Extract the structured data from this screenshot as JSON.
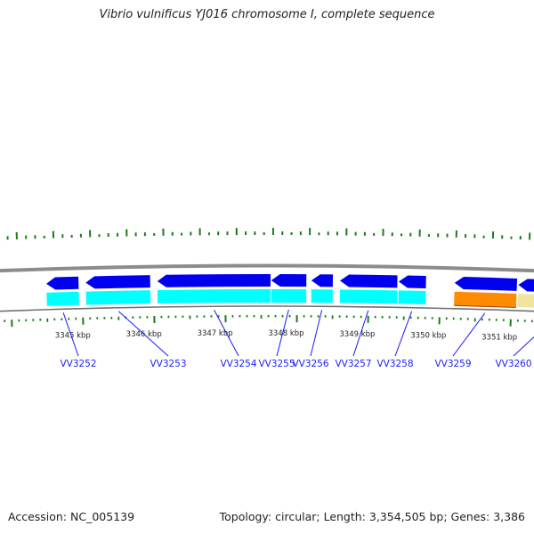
{
  "title": "Vibrio vulnificus YJ016 chromosome I, complete sequence",
  "footer": {
    "accession": "Accession: NC_005139",
    "topology": "Topology: circular; Length: 3,354,505 bp; Genes: 3,386"
  },
  "axis": {
    "unit": "kbp",
    "ticks": [
      {
        "kbp": 3345,
        "label": "3345 kbp"
      },
      {
        "kbp": 3346,
        "label": "3346 kbp"
      },
      {
        "kbp": 3347,
        "label": "3347 kbp"
      },
      {
        "kbp": 3348,
        "label": "3348 kbp"
      },
      {
        "kbp": 3349,
        "label": "3349 kbp"
      },
      {
        "kbp": 3350,
        "label": "3350 kbp"
      },
      {
        "kbp": 3351,
        "label": "3351 kbp"
      }
    ]
  },
  "colors": {
    "gene_cds": "#0000ee",
    "gene_cds_light": "#00ffff",
    "gene_highlight": "#ff8c00",
    "gene_highlight_light": "#f0e4a0",
    "backbone": "#8c8c8c",
    "gc_ticks": "#1f7a1f",
    "label": "#1a1aff"
  },
  "genes": [
    {
      "label": "VV3252",
      "start_kbp": 3344.5,
      "end_kbp": 3344.95,
      "strand": "-",
      "category": "cds"
    },
    {
      "label": "VV3253",
      "start_kbp": 3345.05,
      "end_kbp": 3345.95,
      "strand": "-",
      "category": "cds"
    },
    {
      "label": "VV3254",
      "start_kbp": 3346.05,
      "end_kbp": 3347.63,
      "strand": "-",
      "category": "cds"
    },
    {
      "label": "VV3255",
      "start_kbp": 3347.64,
      "end_kbp": 3348.13,
      "strand": "-",
      "category": "cds"
    },
    {
      "label": "VV3256",
      "start_kbp": 3348.2,
      "end_kbp": 3348.5,
      "strand": "-",
      "category": "cds"
    },
    {
      "label": "VV3257",
      "start_kbp": 3348.6,
      "end_kbp": 3349.4,
      "strand": "-",
      "category": "cds"
    },
    {
      "label": "VV3258",
      "start_kbp": 3349.42,
      "end_kbp": 3349.8,
      "strand": "-",
      "category": "cds"
    },
    {
      "label": "VV3259",
      "start_kbp": 3350.2,
      "end_kbp": 3351.07,
      "strand": "-",
      "category": "highlight"
    },
    {
      "label": "VV3260",
      "start_kbp": 3351.09,
      "end_kbp": 3352.2,
      "strand": "-",
      "category": "light"
    }
  ]
}
